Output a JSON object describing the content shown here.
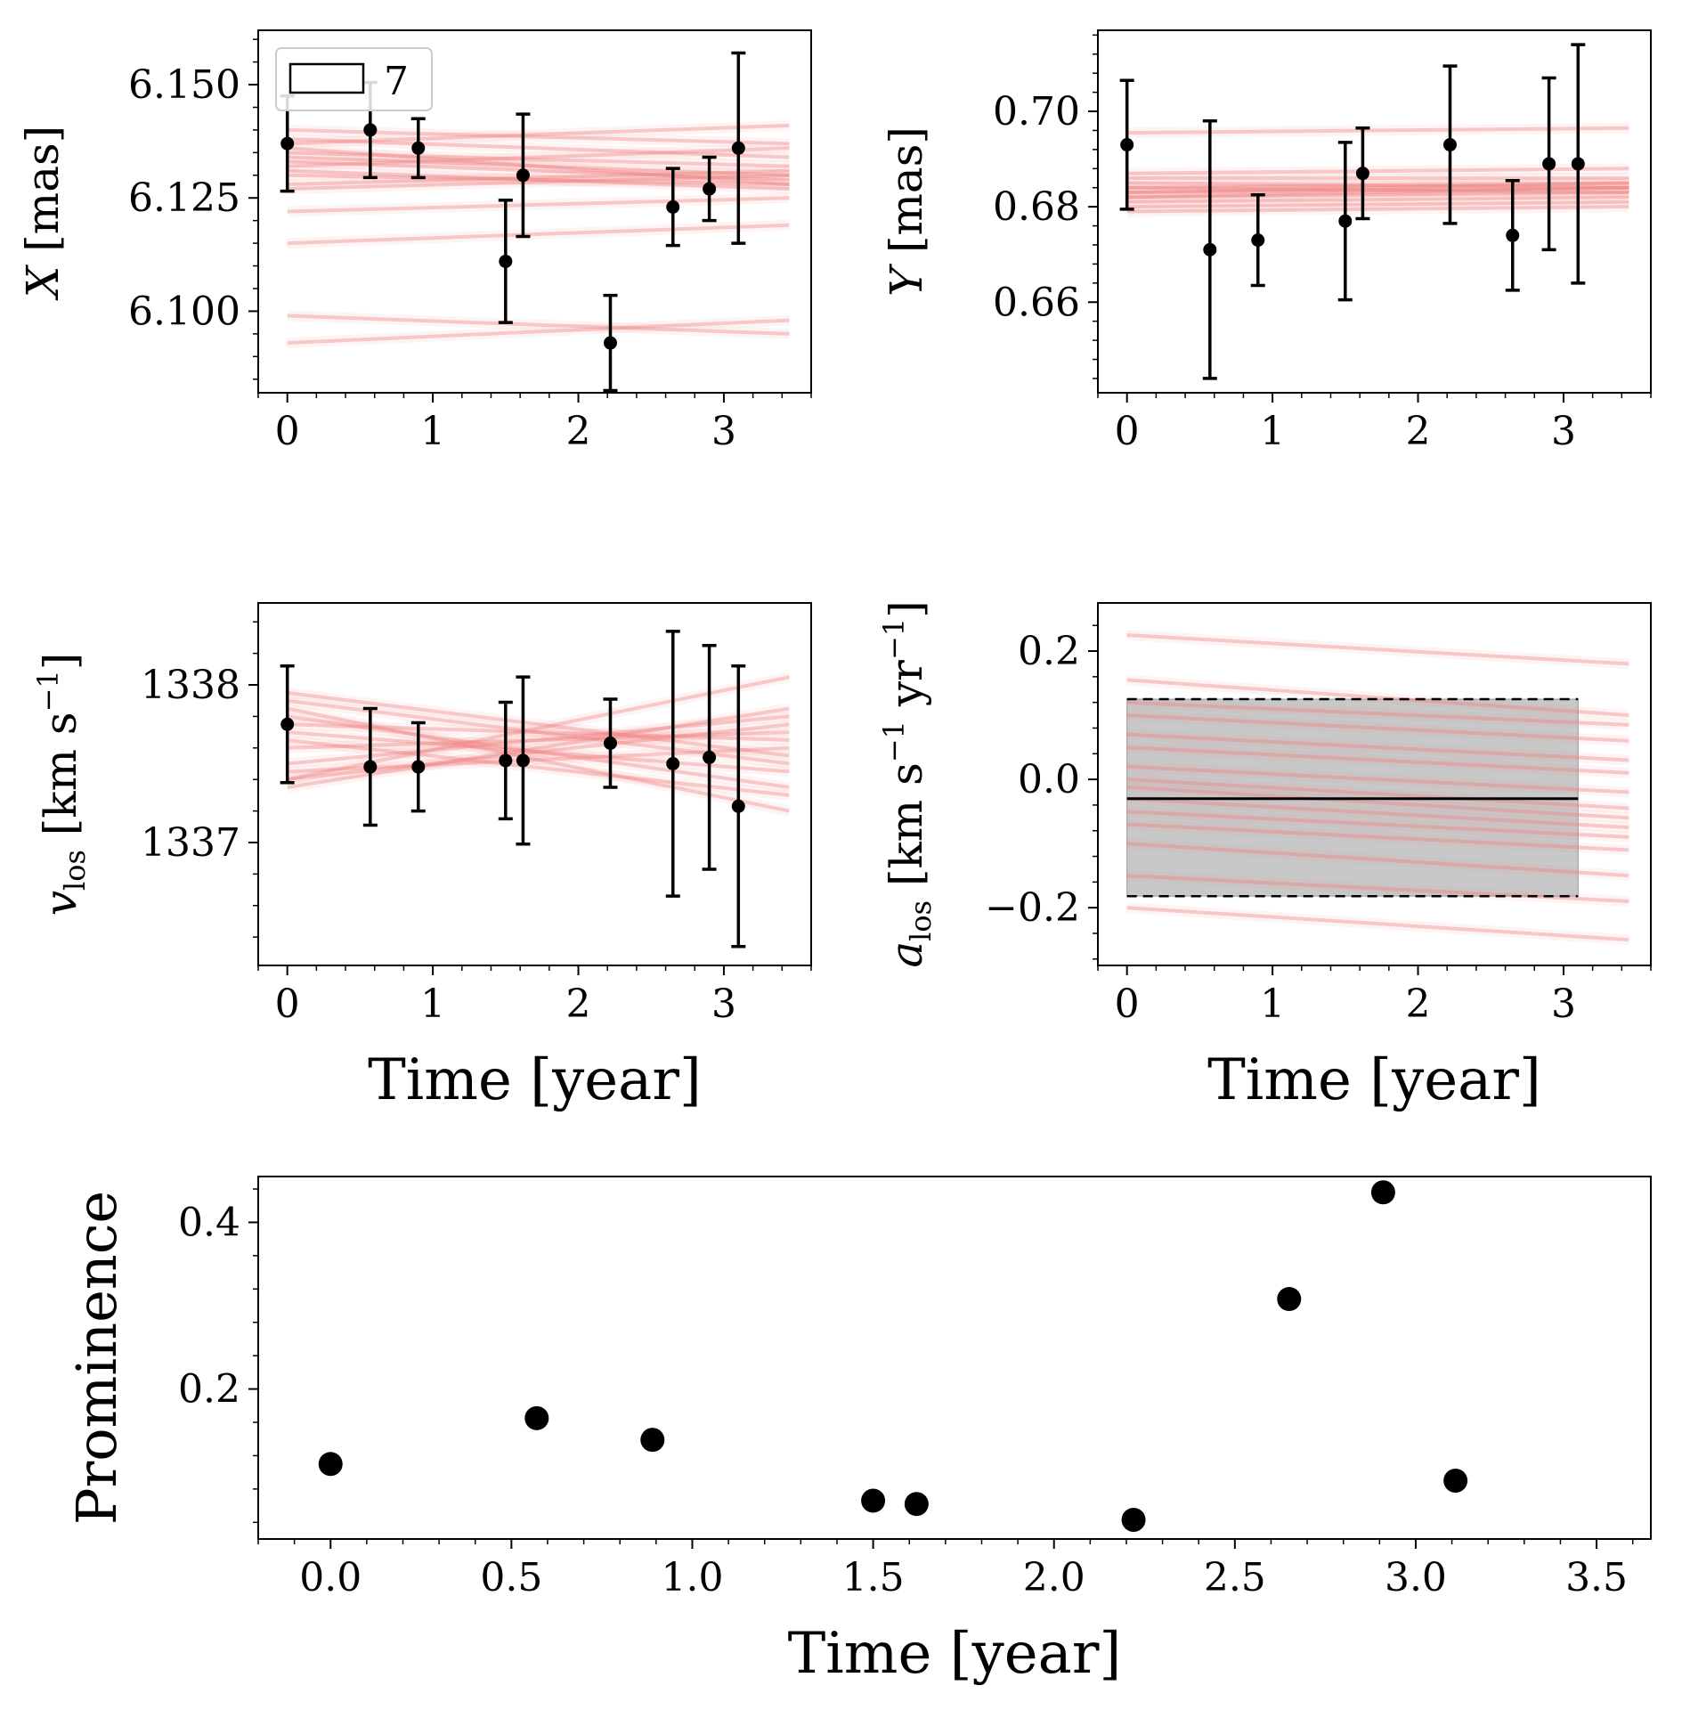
{
  "colors": {
    "model": "#f08080",
    "data": "#000000",
    "band": "#c8c8c8"
  },
  "chart_data": [
    {
      "type": "scatter",
      "panel": "x-position",
      "ylabel": "X [mas]",
      "ylabel_parts": {
        "var": "X",
        "unit": "[mas]"
      },
      "xlim": [
        -0.2,
        3.6
      ],
      "ylim": [
        6.082,
        6.162
      ],
      "xticks": [
        0,
        1,
        2,
        3
      ],
      "xtick_labels": [
        "0",
        "1",
        "2",
        "3"
      ],
      "yticks": [
        6.1,
        6.125,
        6.15
      ],
      "ytick_labels": [
        "6.100",
        "6.125",
        "6.150"
      ],
      "legend": {
        "label": "7",
        "placement": "top-left"
      },
      "x": [
        0.0,
        0.57,
        0.9,
        1.5,
        1.62,
        2.22,
        2.65,
        2.9,
        3.1
      ],
      "y": [
        6.137,
        6.14,
        6.136,
        6.111,
        6.13,
        6.093,
        6.123,
        6.127,
        6.136
      ],
      "yerr": [
        0.0105,
        0.0105,
        0.0065,
        0.0135,
        0.0135,
        0.0105,
        0.0085,
        0.007,
        0.021
      ],
      "model_lines": [
        [
          6.136,
          6.128
        ],
        [
          6.133,
          6.129
        ],
        [
          6.131,
          6.127
        ],
        [
          6.138,
          6.134
        ],
        [
          6.13,
          6.128
        ],
        [
          6.127,
          6.13
        ],
        [
          6.122,
          6.125
        ],
        [
          6.115,
          6.119
        ],
        [
          6.099,
          6.095
        ],
        [
          6.093,
          6.098
        ],
        [
          6.135,
          6.132
        ],
        [
          6.14,
          6.137
        ],
        [
          6.132,
          6.136
        ],
        [
          6.128,
          6.131
        ],
        [
          6.137,
          6.141
        ],
        [
          6.134,
          6.13
        ]
      ]
    },
    {
      "type": "scatter",
      "panel": "y-position",
      "ylabel": "Y [mas]",
      "ylabel_parts": {
        "var": "Y",
        "unit": "[mas]"
      },
      "xlim": [
        -0.2,
        3.6
      ],
      "ylim": [
        0.641,
        0.717
      ],
      "xticks": [
        0,
        1,
        2,
        3
      ],
      "xtick_labels": [
        "0",
        "1",
        "2",
        "3"
      ],
      "yticks": [
        0.66,
        0.68,
        0.7
      ],
      "ytick_labels": [
        "0.66",
        "0.68",
        "0.70"
      ],
      "x": [
        0.0,
        0.57,
        0.9,
        1.5,
        1.62,
        2.22,
        2.65,
        2.9,
        3.1
      ],
      "y": [
        0.693,
        0.671,
        0.673,
        0.677,
        0.687,
        0.693,
        0.674,
        0.689,
        0.689
      ],
      "yerr": [
        0.0135,
        0.027,
        0.0095,
        0.0165,
        0.0095,
        0.0165,
        0.0115,
        0.018,
        0.025
      ],
      "model_lines": [
        [
          0.683,
          0.684
        ],
        [
          0.682,
          0.683
        ],
        [
          0.684,
          0.685
        ],
        [
          0.681,
          0.682
        ],
        [
          0.685,
          0.684
        ],
        [
          0.683,
          0.685
        ],
        [
          0.682,
          0.684
        ],
        [
          0.686,
          0.686
        ],
        [
          0.68,
          0.681
        ],
        [
          0.684,
          0.683
        ],
        [
          0.6955,
          0.6965
        ],
        [
          0.687,
          0.688
        ],
        [
          0.679,
          0.68
        ]
      ]
    },
    {
      "type": "scatter",
      "panel": "line-of-sight-velocity",
      "ylabel": "v_los [km s^-1]",
      "ylabel_parts": {
        "var": "v",
        "sub": "los",
        "unit": "[km s",
        "exp": "−1",
        "close": "]"
      },
      "xlim": [
        -0.2,
        3.6
      ],
      "ylim": [
        1336.22,
        1338.52
      ],
      "xticks": [
        0,
        1,
        2,
        3
      ],
      "xtick_labels": [
        "0",
        "1",
        "2",
        "3"
      ],
      "yticks": [
        1337,
        1338
      ],
      "ytick_labels": [
        "1337",
        "1338"
      ],
      "xlabel": "Time [year]",
      "x": [
        0.0,
        0.57,
        0.9,
        1.5,
        1.62,
        2.22,
        2.65,
        2.9,
        3.1
      ],
      "y": [
        1337.75,
        1337.48,
        1337.48,
        1337.52,
        1337.52,
        1337.63,
        1337.5,
        1337.54,
        1337.23
      ],
      "yerr": [
        0.37,
        0.37,
        0.28,
        0.37,
        0.53,
        0.28,
        0.84,
        0.71,
        0.89
      ],
      "model_lines": [
        [
          1337.9,
          1337.5
        ],
        [
          1337.4,
          1338.05
        ],
        [
          1337.85,
          1337.2
        ],
        [
          1337.35,
          1337.85
        ],
        [
          1337.7,
          1337.45
        ],
        [
          1337.6,
          1337.7
        ],
        [
          1337.8,
          1337.35
        ],
        [
          1337.5,
          1337.8
        ],
        [
          1337.95,
          1337.55
        ],
        [
          1337.45,
          1337.6
        ],
        [
          1337.65,
          1337.3
        ],
        [
          1337.4,
          1337.75
        ],
        [
          1337.75,
          1337.65
        ]
      ]
    },
    {
      "type": "scatter",
      "panel": "line-of-sight-acceleration",
      "ylabel": "a_los [km s^-1 yr^-1]",
      "ylabel_parts": {
        "var": "a",
        "sub": "los",
        "unit": "[km s",
        "exp1": "−1",
        "mid": " yr",
        "exp2": "−1",
        "close": "]"
      },
      "xlim": [
        -0.2,
        3.6
      ],
      "ylim": [
        -0.29,
        0.275
      ],
      "xticks": [
        0,
        1,
        2,
        3
      ],
      "xtick_labels": [
        "0",
        "1",
        "2",
        "3"
      ],
      "yticks": [
        -0.2,
        0.0,
        0.2
      ],
      "ytick_labels": [
        "−0.2",
        "0.0",
        "0.2"
      ],
      "xlabel": "Time [year]",
      "band": {
        "x0": 0.0,
        "x1": 3.1,
        "mean": -0.03,
        "lower": -0.182,
        "upper": 0.125
      },
      "model_lines": [
        [
          0.0,
          -0.045
        ],
        [
          -0.012,
          -0.06
        ],
        [
          0.02,
          -0.02
        ],
        [
          -0.05,
          -0.09
        ],
        [
          0.05,
          0.01
        ],
        [
          0.1,
          0.06
        ],
        [
          0.155,
          0.1
        ],
        [
          0.225,
          0.18
        ],
        [
          -0.1,
          -0.15
        ],
        [
          -0.2,
          -0.25
        ],
        [
          0.07,
          0.03
        ],
        [
          -0.15,
          -0.19
        ],
        [
          -0.03,
          -0.075
        ],
        [
          0.12,
          0.085
        ],
        [
          -0.07,
          -0.11
        ]
      ]
    },
    {
      "type": "scatter",
      "panel": "prominence",
      "ylabel": "Prominence",
      "xlabel": "Time [year]",
      "xlim": [
        -0.2,
        3.65
      ],
      "ylim": [
        0.02,
        0.455
      ],
      "xticks": [
        0.0,
        0.5,
        1.0,
        1.5,
        2.0,
        2.5,
        3.0,
        3.5
      ],
      "xtick_labels": [
        "0.0",
        "0.5",
        "1.0",
        "1.5",
        "2.0",
        "2.5",
        "3.0",
        "3.5"
      ],
      "yticks": [
        0.2,
        0.4
      ],
      "ytick_labels": [
        "0.2",
        "0.4"
      ],
      "x": [
        0.0,
        0.57,
        0.89,
        1.5,
        1.62,
        2.22,
        2.65,
        2.91,
        3.11
      ],
      "y": [
        0.11,
        0.165,
        0.139,
        0.066,
        0.062,
        0.043,
        0.308,
        0.436,
        0.09
      ]
    }
  ]
}
